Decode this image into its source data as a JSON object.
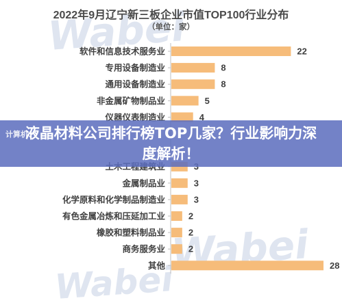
{
  "chart_data": {
    "type": "bar",
    "orientation": "horizontal",
    "title": "2022年9月辽宁新三板企业市值TOP100行业分布",
    "subtitle": "（单位：家）",
    "categories": [
      "软件和信息技术服务业",
      "专用设备制造业",
      "通用设备制造业",
      "非金属矿物制品业",
      "仪器仪表制造业",
      "",
      "",
      "土木工程建筑业",
      "金属制品业",
      "化学原料和化学制品制造业",
      "有色金属冶炼和压延加工业",
      "橡胶和塑料制品业",
      "商务服务业",
      "其他"
    ],
    "values": [
      22,
      8,
      8,
      5,
      4,
      null,
      null,
      3,
      3,
      3,
      2,
      2,
      2,
      28
    ],
    "bar_color": "#f6bc7a",
    "xlim": [
      0,
      28
    ],
    "grid": false,
    "legend": "none"
  },
  "overlay": {
    "banner_text": "液晶材料公司排行榜TOP几家？行业影响力深度解析！",
    "banner_color": "#5c6ebe",
    "side_text": "计算机、"
  },
  "watermark": {
    "text": "Wabei",
    "color": "#dfe5f0"
  }
}
